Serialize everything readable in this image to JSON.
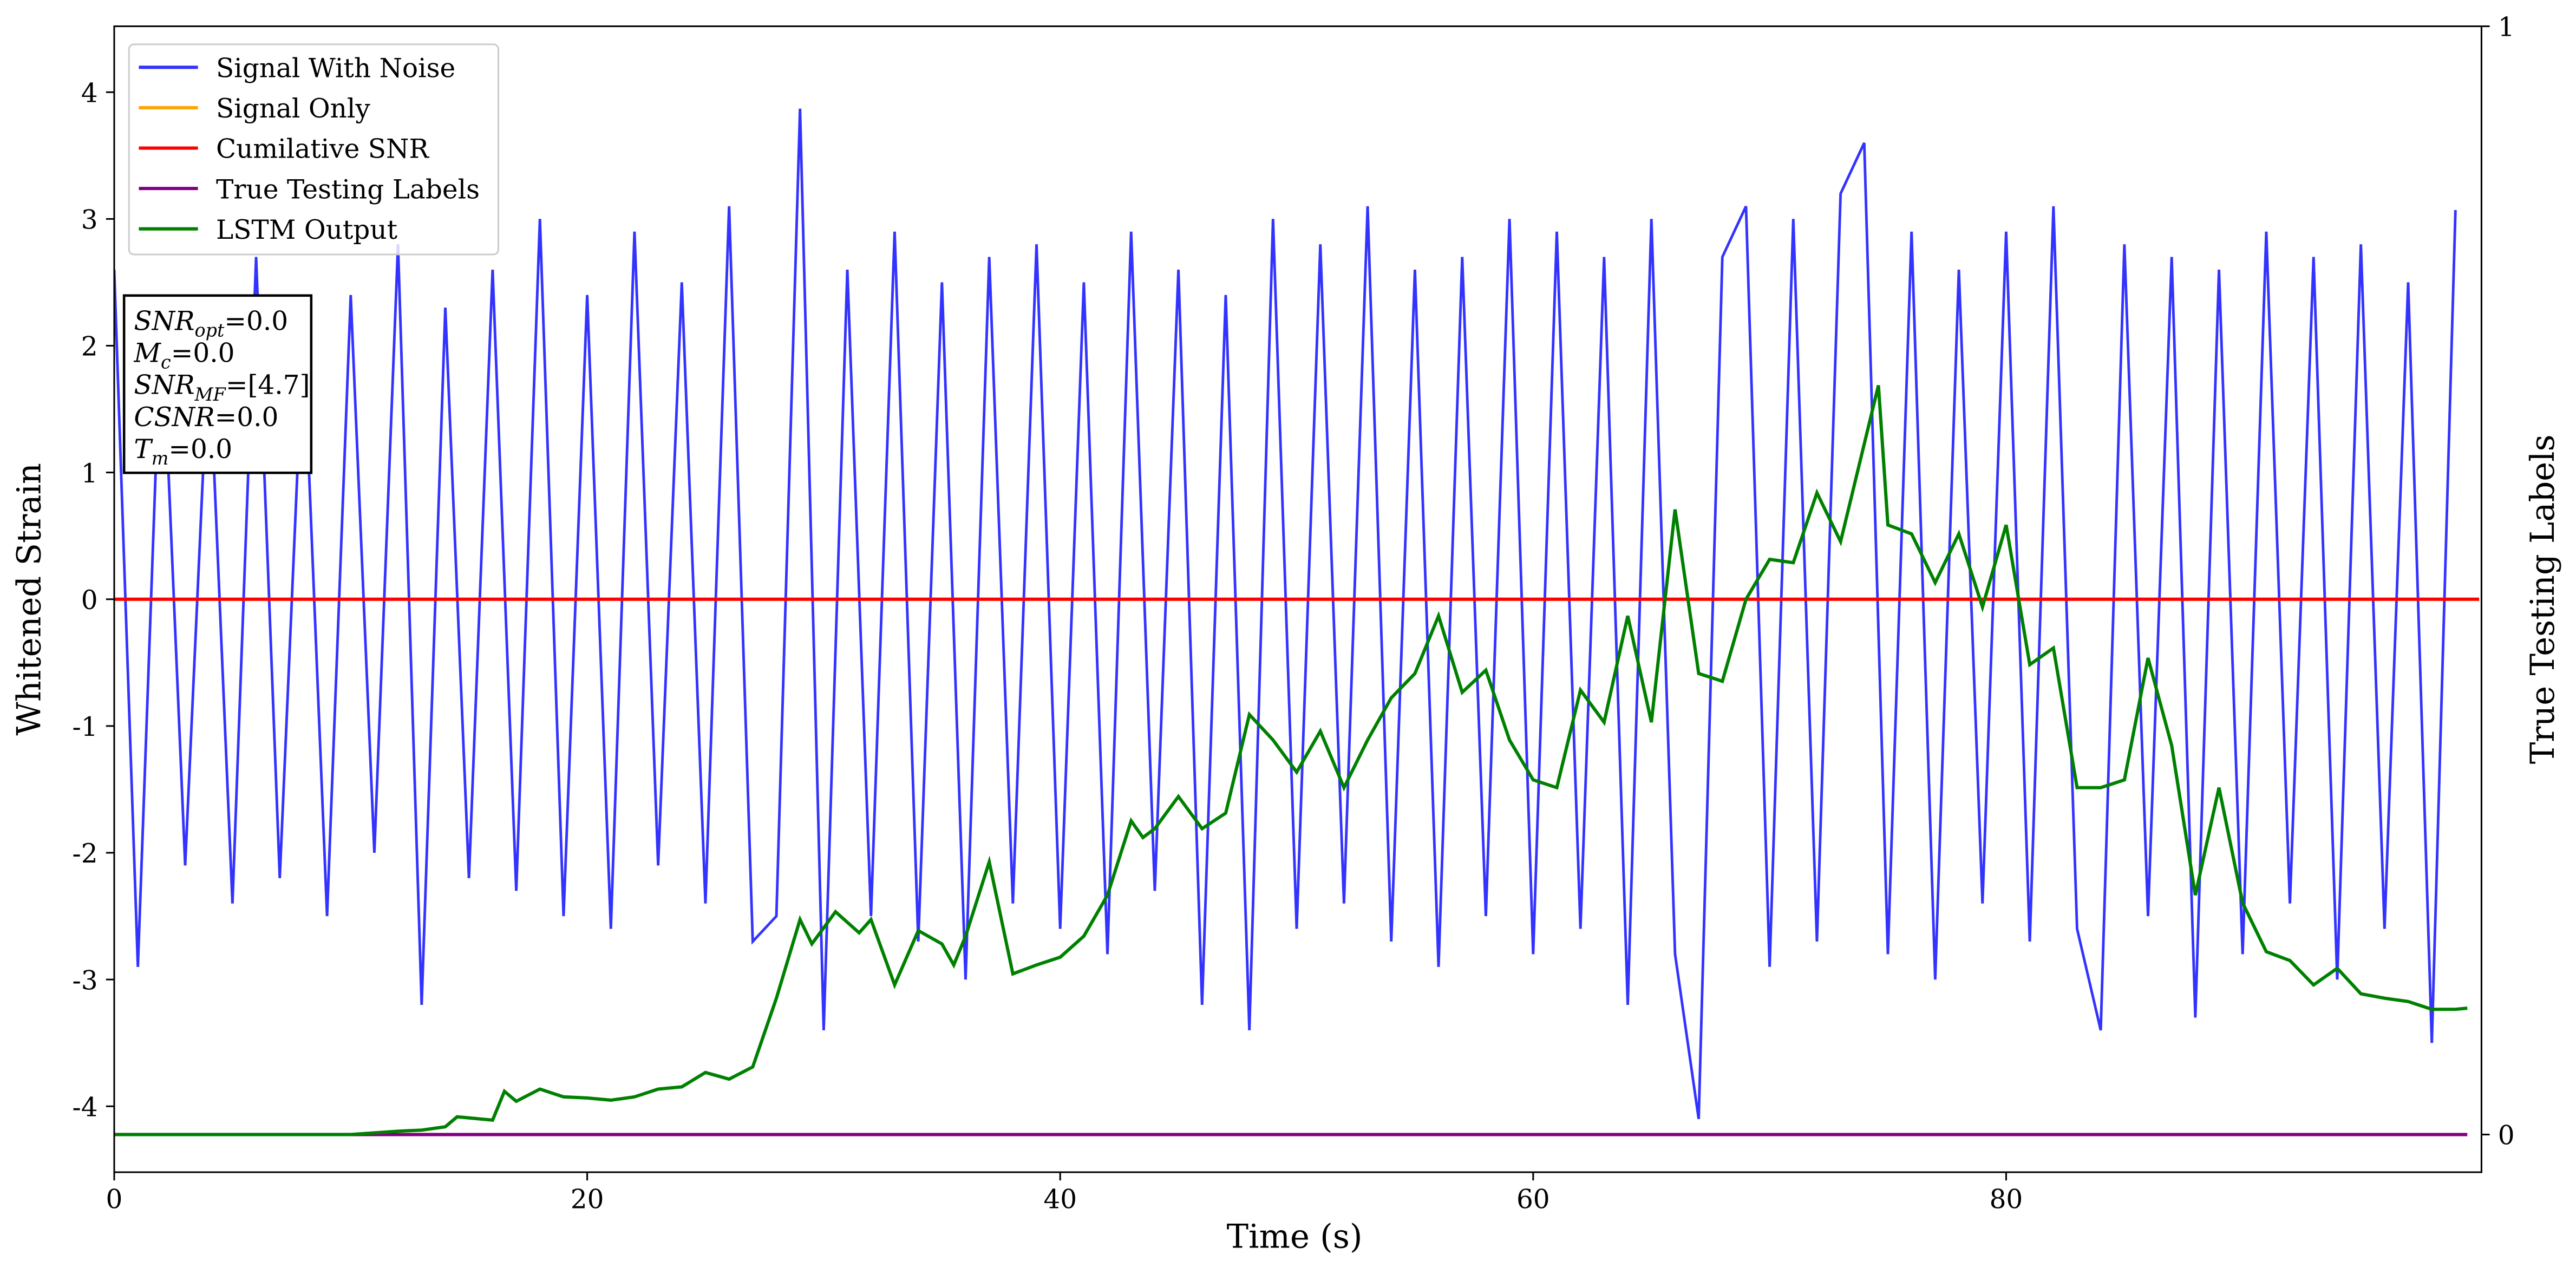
{
  "chart_data": {
    "type": "line",
    "xlabel": "Time (s)",
    "ylabel": "Whitened Strain",
    "y2label": "True Testing Labels",
    "xlim": [
      0,
      100.1
    ],
    "ylim": [
      -4.52,
      4.52
    ],
    "y2lim": [
      -0.034,
      1
    ],
    "xticks": [
      0,
      20,
      40,
      60,
      80
    ],
    "yticks": [
      -4,
      -3,
      -2,
      -1,
      0,
      1,
      2,
      3,
      4
    ],
    "y2ticks": [
      0,
      1
    ],
    "legend": "upper left",
    "series": [
      {
        "name": "Signal With Noise",
        "color": "#3333ff",
        "x": [
          0,
          1,
          2,
          3,
          4,
          5,
          6,
          7,
          8,
          9,
          10,
          11,
          12,
          13,
          14,
          15,
          16,
          17,
          18,
          19,
          20,
          21,
          22,
          23,
          24,
          25,
          26,
          27,
          28,
          29,
          30,
          31,
          32,
          33,
          34,
          35,
          36,
          37,
          38,
          39,
          40,
          41,
          42,
          43,
          44,
          45,
          46,
          47,
          48,
          49,
          50,
          51,
          52,
          53,
          54,
          55,
          56,
          57,
          58,
          59,
          60,
          61,
          62,
          63,
          64,
          65,
          66,
          67,
          68,
          69,
          70,
          71,
          72,
          73,
          74,
          75,
          76,
          77,
          78,
          79,
          80,
          81,
          82,
          83,
          84,
          85,
          86,
          87,
          88,
          89,
          90,
          91,
          92,
          93,
          94,
          95,
          96,
          97,
          98,
          99
        ],
        "values": [
          2.6,
          -2.9,
          2.3,
          -2.1,
          2.0,
          -2.4,
          2.7,
          -2.2,
          2.1,
          -2.5,
          2.4,
          -2.0,
          2.8,
          -3.2,
          2.3,
          -2.2,
          2.6,
          -2.3,
          3.0,
          -2.5,
          2.4,
          -2.6,
          2.9,
          -2.1,
          2.5,
          -2.4,
          3.1,
          -2.7,
          -2.5,
          3.87,
          -3.4,
          2.6,
          -2.5,
          2.9,
          -2.7,
          2.5,
          -3.0,
          2.7,
          -2.4,
          2.8,
          -2.6,
          2.5,
          -2.8,
          2.9,
          -2.3,
          2.6,
          -3.2,
          2.4,
          -3.4,
          3.0,
          -2.6,
          2.8,
          -2.4,
          3.1,
          -2.7,
          2.6,
          -2.9,
          2.7,
          -2.5,
          3.0,
          -2.8,
          2.9,
          -2.6,
          2.7,
          -3.2,
          3.0,
          -2.8,
          -4.1,
          2.7,
          3.1,
          -2.9,
          3.0,
          -2.7,
          3.2,
          3.6,
          -2.8,
          2.9,
          -3.0,
          2.6,
          -2.4,
          2.9,
          -2.7,
          3.1,
          -2.6,
          -3.4,
          2.8,
          -2.5,
          2.7,
          -3.3,
          2.6,
          -2.8,
          2.9,
          -2.4,
          2.7,
          -3.0,
          2.8,
          -2.6,
          2.5,
          -3.5,
          3.07
        ]
      },
      {
        "name": "Signal Only",
        "color": "#ffa500",
        "x": [
          0,
          100
        ],
        "values": [
          0,
          0
        ]
      },
      {
        "name": "Cumilative SNR",
        "color": "#ff0000",
        "x": [
          0,
          100
        ],
        "values": [
          0,
          0
        ]
      },
      {
        "name": "True Testing Labels",
        "color": "#800080",
        "axis": "y2",
        "x": [
          0,
          99.5
        ],
        "values": [
          0,
          0
        ]
      },
      {
        "name": "LSTM Output",
        "color": "#008000",
        "axis": "y2",
        "x": [
          0,
          10,
          12,
          13,
          14,
          14.5,
          15,
          16,
          16.5,
          17,
          18,
          19,
          20,
          21,
          22,
          23,
          24,
          25,
          26,
          27,
          28,
          29,
          29.5,
          30.5,
          31.5,
          32,
          33,
          34,
          35,
          35.5,
          36,
          37,
          38,
          39,
          40,
          41,
          42,
          43,
          43.5,
          44,
          45,
          46,
          47,
          48,
          49,
          50,
          51,
          52,
          53,
          54,
          55,
          56,
          57,
          58,
          59,
          60,
          61,
          62,
          63,
          64,
          65,
          66,
          67,
          68,
          69,
          70,
          71,
          72,
          73,
          74.6,
          75,
          76,
          77,
          78,
          79,
          80,
          81,
          82,
          83,
          84,
          85,
          86,
          87,
          88,
          89,
          90,
          91,
          92,
          93,
          94,
          95,
          96,
          97,
          98,
          99,
          99.5
        ],
        "values": [
          0,
          0,
          0.003,
          0.004,
          0.007,
          0.016,
          0.015,
          0.013,
          0.039,
          0.03,
          0.041,
          0.034,
          0.033,
          0.031,
          0.034,
          0.041,
          0.043,
          0.056,
          0.05,
          0.061,
          0.123,
          0.194,
          0.172,
          0.201,
          0.182,
          0.194,
          0.135,
          0.184,
          0.172,
          0.153,
          0.179,
          0.246,
          0.145,
          0.153,
          0.16,
          0.179,
          0.216,
          0.283,
          0.268,
          0.276,
          0.305,
          0.276,
          0.29,
          0.379,
          0.356,
          0.327,
          0.364,
          0.313,
          0.356,
          0.394,
          0.416,
          0.468,
          0.399,
          0.419,
          0.356,
          0.32,
          0.313,
          0.401,
          0.372,
          0.468,
          0.372,
          0.564,
          0.416,
          0.409,
          0.483,
          0.519,
          0.516,
          0.579,
          0.535,
          0.676,
          0.55,
          0.542,
          0.498,
          0.542,
          0.476,
          0.55,
          0.424,
          0.439,
          0.313,
          0.313,
          0.32,
          0.43,
          0.351,
          0.216,
          0.313,
          0.209,
          0.165,
          0.157,
          0.135,
          0.15,
          0.127,
          0.123,
          0.12,
          0.113,
          0.113,
          0.114
        ]
      }
    ],
    "textbox": [
      {
        "base": "SNR",
        "sub": "opt",
        "value": "=0.0"
      },
      {
        "base": "M",
        "sub": "c",
        "value": "=0.0"
      },
      {
        "base": "SNR",
        "sub": "MF",
        "value": "=[4.7]"
      },
      {
        "base": "CSNR",
        "value": "=0.0"
      },
      {
        "base": "T",
        "sub": "m",
        "value": "=0.0"
      }
    ]
  }
}
